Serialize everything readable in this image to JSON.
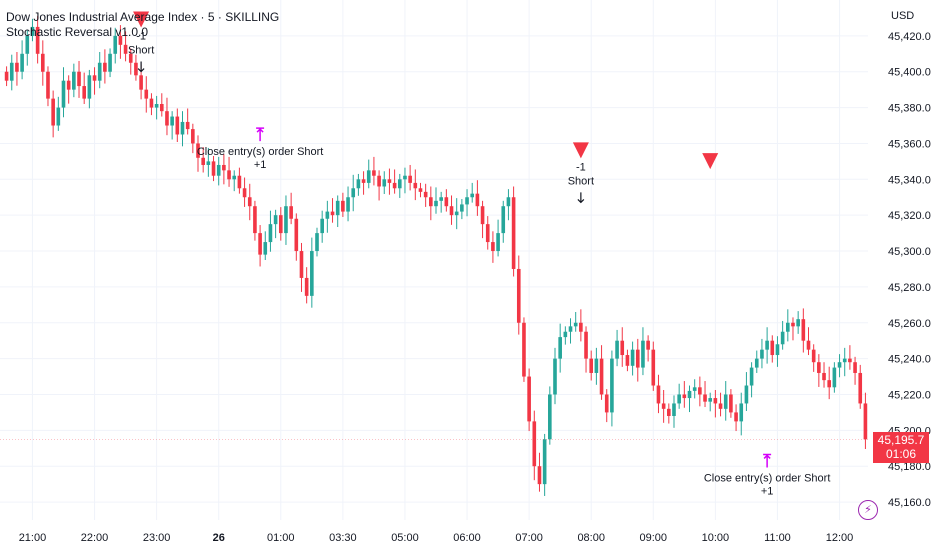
{
  "header": {
    "symbol_line": "Dow Jones Industrial Average Index · 5 · SKILLING",
    "indicator": "Stochastic Reversal v1.0.0"
  },
  "currency": "USD",
  "last_price": {
    "value": "45,195.7",
    "countdown": "01:06"
  },
  "colors": {
    "up": "#26a69a",
    "down": "#f23645",
    "signal": "#d500f9",
    "grid": "#f0f3fa",
    "axis_text": "#131722"
  },
  "chart_data": {
    "type": "candlestick",
    "yaxis": {
      "min": 45150,
      "max": 45440,
      "ticks": [
        45160,
        45180,
        45200,
        45220,
        45240,
        45260,
        45280,
        45300,
        45320,
        45340,
        45360,
        45380,
        45400,
        45420
      ],
      "tick_labels": [
        "45,160.0",
        "45,180.0",
        "45,200.0",
        "45,220.0",
        "45,240.0",
        "45,260.0",
        "45,280.0",
        "45,300.0",
        "45,320.0",
        "45,340.0",
        "45,360.0",
        "45,380.0",
        "45,400.0",
        "45,420.0"
      ]
    },
    "xaxis": {
      "ticks": [
        {
          "label": "21:00",
          "bar": 5
        },
        {
          "label": "22:00",
          "bar": 17
        },
        {
          "label": "23:00",
          "bar": 29
        },
        {
          "label": "26",
          "bar": 41,
          "bold": true
        },
        {
          "label": "01:00",
          "bar": 53
        },
        {
          "label": "03:30",
          "bar": 65
        },
        {
          "label": "05:00",
          "bar": 77
        },
        {
          "label": "06:00",
          "bar": 89
        },
        {
          "label": "07:00",
          "bar": 101
        },
        {
          "label": "08:00",
          "bar": 113
        },
        {
          "label": "09:00",
          "bar": 125
        },
        {
          "label": "10:00",
          "bar": 137
        },
        {
          "label": "11:00",
          "bar": 149
        },
        {
          "label": "12:00",
          "bar": 161
        }
      ]
    },
    "closes": [
      45395,
      45405,
      45400,
      45410,
      45420,
      45425,
      45410,
      45400,
      45385,
      45370,
      45380,
      45395,
      45390,
      45400,
      45392,
      45385,
      45398,
      45395,
      45405,
      45400,
      45410,
      45420,
      45415,
      45410,
      45405,
      45398,
      45390,
      45385,
      45380,
      45382,
      45378,
      45370,
      45375,
      45365,
      45372,
      45368,
      45360,
      45352,
      45348,
      45350,
      45342,
      45348,
      45345,
      45340,
      45342,
      45335,
      45330,
      45325,
      45310,
      45298,
      45305,
      45315,
      45320,
      45310,
      45325,
      45318,
      45300,
      45285,
      45275,
      45300,
      45310,
      45318,
      45322,
      45320,
      45328,
      45322,
      45330,
      45335,
      45340,
      45338,
      45345,
      45342,
      45336,
      45340,
      45338,
      45335,
      45340,
      45342,
      45338,
      45335,
      45333,
      45330,
      45325,
      45328,
      45330,
      45325,
      45320,
      45322,
      45326,
      45330,
      45332,
      45325,
      45315,
      45305,
      45300,
      45310,
      45325,
      45330,
      45290,
      45260,
      45230,
      45205,
      45180,
      45170,
      45195,
      45220,
      45240,
      45252,
      45255,
      45258,
      45260,
      45255,
      45240,
      45232,
      45240,
      45220,
      45210,
      45240,
      45250,
      45242,
      45236,
      45245,
      45235,
      45250,
      45245,
      45225,
      45215,
      45212,
      45208,
      45215,
      45220,
      45218,
      45222,
      45224,
      45220,
      45216,
      45218,
      45215,
      45212,
      45220,
      45210,
      45205,
      45215,
      45225,
      45235,
      45240,
      45245,
      45250,
      45242,
      45248,
      45255,
      45260,
      45258,
      45262,
      45250,
      45245,
      45238,
      45232,
      45228,
      45224,
      45235,
      45238,
      45240,
      45238,
      45232,
      45215,
      45195
    ],
    "series": [
      {
        "name": "Dow Jones Industrial Average Index",
        "kind": "ohlc"
      }
    ],
    "annotations": [
      {
        "type": "short",
        "bar": 26,
        "price": 45428,
        "texts": [
          "-1",
          "Short"
        ]
      },
      {
        "type": "close",
        "bar": 49,
        "price": 45368,
        "texts": [
          "Close entry(s) order Short",
          "+1"
        ]
      },
      {
        "type": "short",
        "bar": 111,
        "price": 45355,
        "texts": [
          "-1",
          "Short"
        ]
      },
      {
        "type": "short_marker",
        "bar": 136,
        "price": 45349,
        "texts": []
      },
      {
        "type": "close",
        "bar": 147,
        "price": 45186,
        "texts": [
          "Close entry(s) order Short",
          "+1"
        ]
      }
    ]
  }
}
